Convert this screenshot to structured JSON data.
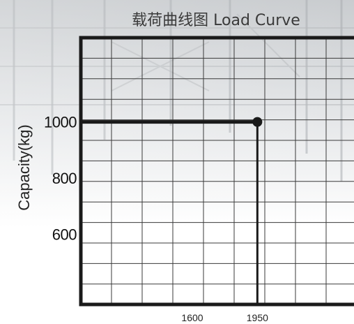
{
  "chart_data": {
    "type": "line",
    "title": "载荷曲线图 Load Curve",
    "xlabel": "",
    "ylabel": "Capacity(kg)",
    "x_ticks": [
      1600,
      1950
    ],
    "y_ticks": [
      600,
      800,
      1000
    ],
    "xlim": [
      1000,
      2500
    ],
    "ylim": [
      350,
      1300
    ],
    "grid": true,
    "series": [
      {
        "x": [
          1000,
          1950
        ],
        "y": [
          1000,
          1000
        ]
      }
    ],
    "marker_point": {
      "x": 1950,
      "y": 1000
    },
    "colors": {
      "line": "#1a1a1a",
      "frame": "#1a1a1a",
      "grid": "#3a3a3a"
    }
  }
}
